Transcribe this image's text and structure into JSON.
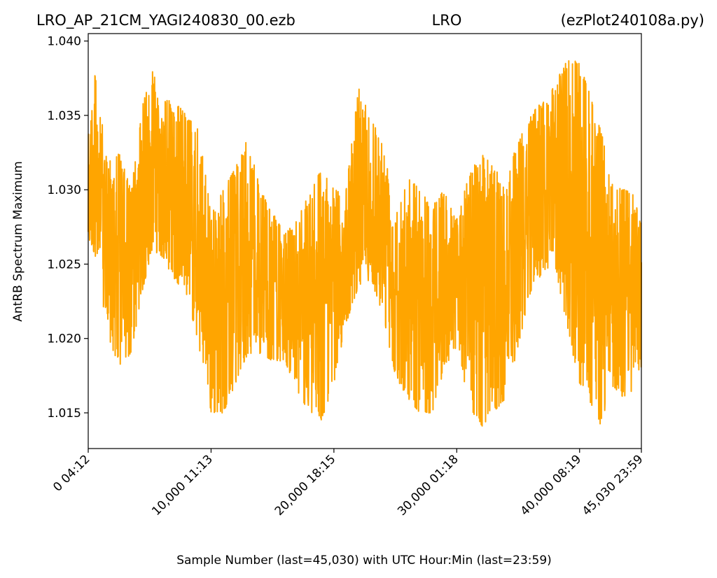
{
  "chart_data": {
    "type": "line",
    "title_parts": [
      "LRO_AP_21CM_YAGI240830_00.ezb",
      "LRO",
      "(ezPlot240108a.py)"
    ],
    "xlabel": "Sample Number (last=45,030) with UTC Hour:Min (last=23:59)",
    "ylabel": "AntRB Spectrum Maximum",
    "xlim": [
      0,
      45030
    ],
    "ylim": [
      1.0126,
      1.0405
    ],
    "x_ticks": [
      {
        "value": 0,
        "label": "0  04:12"
      },
      {
        "value": 10000,
        "label": "10,000  11:13"
      },
      {
        "value": 20000,
        "label": "20,000  18:15"
      },
      {
        "value": 30000,
        "label": "30,000  01:18"
      },
      {
        "value": 40000,
        "label": "40,000  08:19"
      },
      {
        "value": 45030,
        "label": "45,030  23:59"
      }
    ],
    "y_ticks": [
      {
        "value": 1.015,
        "label": "1.015"
      },
      {
        "value": 1.02,
        "label": "1.020"
      },
      {
        "value": 1.025,
        "label": "1.025"
      },
      {
        "value": 1.03,
        "label": "1.030"
      },
      {
        "value": 1.035,
        "label": "1.035"
      },
      {
        "value": 1.04,
        "label": "1.040"
      }
    ],
    "grid": false,
    "series": [
      {
        "color": "#ffa500",
        "envelope": {
          "x": [
            0,
            600,
            1500,
            2500,
            3500,
            4500,
            5200,
            6000,
            7000,
            8000,
            9000,
            10000,
            11000,
            12000,
            13000,
            14000,
            15000,
            16000,
            17000,
            18000,
            19000,
            20000,
            21000,
            22000,
            23000,
            24000,
            25000,
            26000,
            27000,
            28000,
            29000,
            30000,
            31000,
            32000,
            33000,
            34000,
            35000,
            36000,
            37000,
            38000,
            39000,
            40000,
            41000,
            41800,
            42500,
            43500,
            44300,
            45030
          ],
          "upper": [
            1.0345,
            1.038,
            1.032,
            1.0325,
            1.03,
            1.036,
            1.0383,
            1.036,
            1.036,
            1.035,
            1.034,
            1.0285,
            1.03,
            1.0315,
            1.0335,
            1.03,
            1.0285,
            1.027,
            1.028,
            1.03,
            1.0315,
            1.03,
            1.03,
            1.037,
            1.035,
            1.033,
            1.029,
            1.031,
            1.03,
            1.029,
            1.03,
            1.028,
            1.031,
            1.0325,
            1.0315,
            1.0305,
            1.0335,
            1.035,
            1.036,
            1.037,
            1.039,
            1.0385,
            1.036,
            1.034,
            1.0305,
            1.03,
            1.03,
            1.0275
          ],
          "lower": [
            1.0265,
            1.0255,
            1.0205,
            1.018,
            1.019,
            1.0235,
            1.026,
            1.0255,
            1.024,
            1.023,
            1.0195,
            1.015,
            1.015,
            1.017,
            1.019,
            1.019,
            1.0185,
            1.0185,
            1.0165,
            1.015,
            1.0145,
            1.017,
            1.021,
            1.0235,
            1.024,
            1.0215,
            1.0175,
            1.016,
            1.015,
            1.015,
            1.018,
            1.0195,
            1.0155,
            1.014,
            1.015,
            1.016,
            1.0195,
            1.023,
            1.0245,
            1.025,
            1.0205,
            1.017,
            1.0155,
            1.014,
            1.017,
            1.016,
            1.0165,
            1.018
          ]
        }
      }
    ]
  }
}
